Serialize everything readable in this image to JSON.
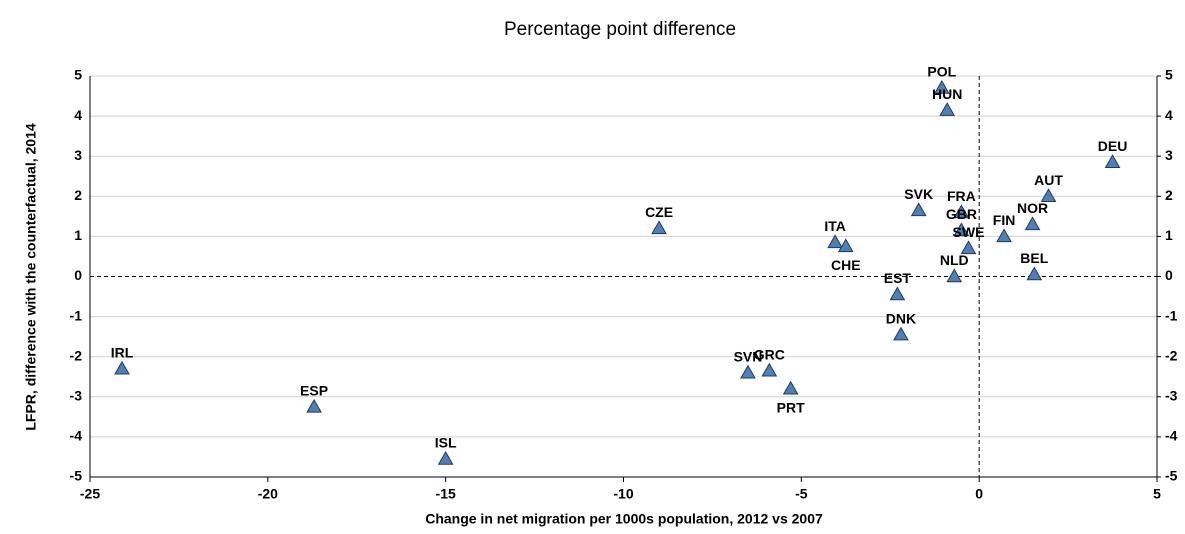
{
  "chart_data": {
    "type": "scatter",
    "subtitle": "Percentage point difference",
    "xlabel": "Change in net migration per 1000s population, 2012 vs 2007",
    "ylabel": "LFPR, difference with the counterfactual, 2014",
    "labels": [
      "IRL",
      "ESP",
      "ISL",
      "CZE",
      "ITA",
      "CHE",
      "SVN",
      "GRC",
      "PRT",
      "EST",
      "DNK",
      "SVK",
      "POL",
      "HUN",
      "FRA",
      "GBR",
      "SWE",
      "NLD",
      "FIN",
      "NOR",
      "BEL",
      "DEU",
      "AUT"
    ],
    "x": [
      -24.1,
      -18.7,
      -15.0,
      -9.0,
      -4.05,
      -3.75,
      -6.5,
      -5.9,
      -5.3,
      -2.3,
      -2.2,
      -1.7,
      -1.05,
      -0.9,
      -0.5,
      -0.5,
      -0.3,
      -0.7,
      0.7,
      1.5,
      1.55,
      3.75,
      1.95
    ],
    "values": [
      -2.3,
      -3.25,
      -4.55,
      1.2,
      0.85,
      0.75,
      -2.4,
      -2.35,
      -2.8,
      -0.45,
      -1.45,
      1.65,
      4.7,
      4.15,
      1.6,
      1.15,
      0.7,
      0.0,
      1.0,
      1.3,
      0.05,
      2.85,
      2.0
    ],
    "color": "#4f7fb8",
    "xlim": [
      -25,
      5
    ],
    "xticks": [
      -25,
      -20,
      -15,
      -10,
      -5,
      0,
      5
    ],
    "ylim": [
      -5,
      5
    ],
    "yticks": [
      -5,
      -4,
      -3,
      -2,
      -1,
      0,
      1,
      2,
      3,
      4,
      5
    ],
    "y2lim": [
      -5,
      5
    ],
    "y2ticks": [
      -5,
      -4,
      -3,
      -2,
      -1,
      0,
      1,
      2,
      3,
      4,
      5
    ],
    "grid": true
  }
}
